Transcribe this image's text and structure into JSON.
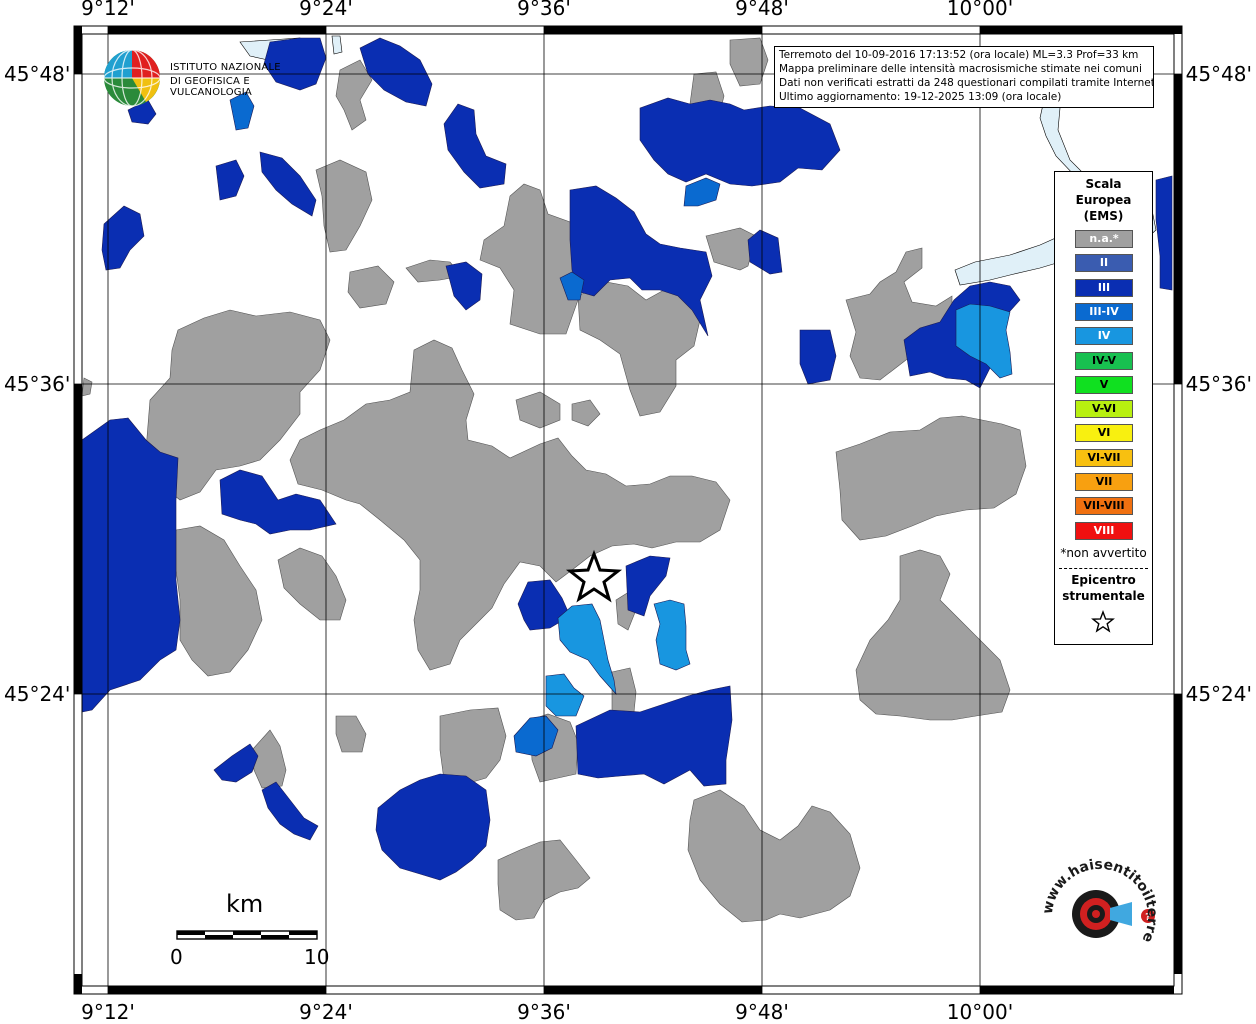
{
  "coordinates": {
    "longitudes": [
      "9°12'",
      "9°24'",
      "9°36'",
      "9°48'",
      "10°00'"
    ],
    "latitudes": [
      "45°48'",
      "45°36'",
      "45°24'"
    ]
  },
  "info_box": {
    "line1": "Terremoto del 10-09-2016 17:13:52 (ora locale) ML=3.3 Prof=33 km",
    "line2": "Mappa preliminare delle intensità macrosismiche stimate nei comuni",
    "line3": "Dati non verificati estratti da 248 questionari compilati tramite Internet.",
    "line4": "Ultimo aggiornamento: 19-12-2025 13:09 (ora locale)"
  },
  "legend": {
    "title_line1": "Scala",
    "title_line2": "Europea",
    "title_line3": "(EMS)",
    "items": [
      {
        "label": "n.a.*",
        "color": "#a0a0a0",
        "text_color": "#ffffff"
      },
      {
        "label": "II",
        "color": "#3a5cb0",
        "text_color": "#ffffff"
      },
      {
        "label": "III",
        "color": "#0a2eb2",
        "text_color": "#ffffff"
      },
      {
        "label": "III-IV",
        "color": "#0a6ad0",
        "text_color": "#ffffff"
      },
      {
        "label": "IV",
        "color": "#1896e0",
        "text_color": "#ffffff"
      },
      {
        "label": "IV-V",
        "color": "#18c050",
        "text_color": "#000000"
      },
      {
        "label": "V",
        "color": "#10e020",
        "text_color": "#000000"
      },
      {
        "label": "V-VI",
        "color": "#b8f010",
        "text_color": "#000000"
      },
      {
        "label": "VI",
        "color": "#f8f010",
        "text_color": "#000000"
      },
      {
        "label": "VI-VII",
        "color": "#f8c010",
        "text_color": "#000000"
      },
      {
        "label": "VII",
        "color": "#f8a010",
        "text_color": "#000000"
      },
      {
        "label": "VII-VIII",
        "color": "#f07010",
        "text_color": "#000000"
      },
      {
        "label": "VIII",
        "color": "#f01010",
        "text_color": "#ffffff"
      }
    ],
    "note": "*non avvertito",
    "epicenter_line1": "Epicentro",
    "epicenter_line2": "strumentale"
  },
  "ingv": {
    "line1": "ISTITUTO NAZIONALE",
    "line2": "DI GEOFISICA E VULCANOLOGIA"
  },
  "scale_bar": {
    "unit": "km",
    "min": "0",
    "max": "10"
  },
  "logo_text": "www.haisentitoilterremoto.it",
  "colors": {
    "na": "#a0a0a0",
    "iii": "#0a2eb2",
    "iii_iv": "#0a6ad0",
    "iv": "#1896e0",
    "lake": "#e0f0f8"
  }
}
